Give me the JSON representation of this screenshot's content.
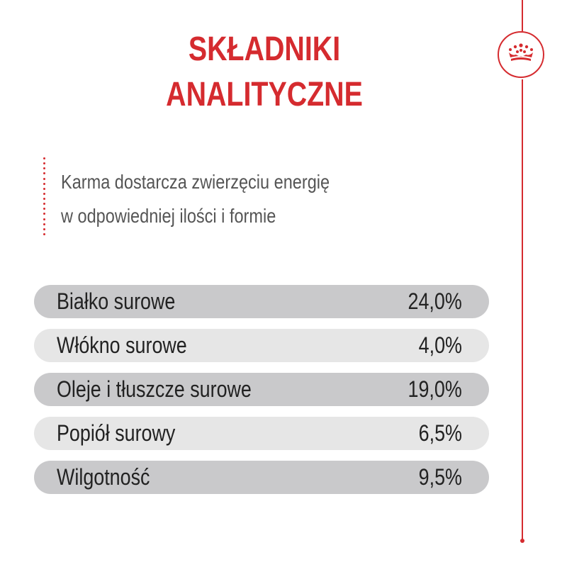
{
  "title": {
    "line1": "SKŁADNIKI",
    "line2": "ANALITYCZNE"
  },
  "intro": {
    "line1": "Karma dostarcza zwierzęciu energię",
    "line2": "w odpowiedniej ilości i formie"
  },
  "brand": {
    "icon": "crown-icon",
    "accent_color": "#d52b2f"
  },
  "rows": [
    {
      "label": "Białko surowe",
      "value": "24,0%"
    },
    {
      "label": "Włókno surowe",
      "value": "4,0%"
    },
    {
      "label": "Oleje i tłuszcze surowe",
      "value": "19,0%"
    },
    {
      "label": "Popiół surowy",
      "value": "6,5%"
    },
    {
      "label": "Wilgotność",
      "value": "9,5%"
    }
  ]
}
